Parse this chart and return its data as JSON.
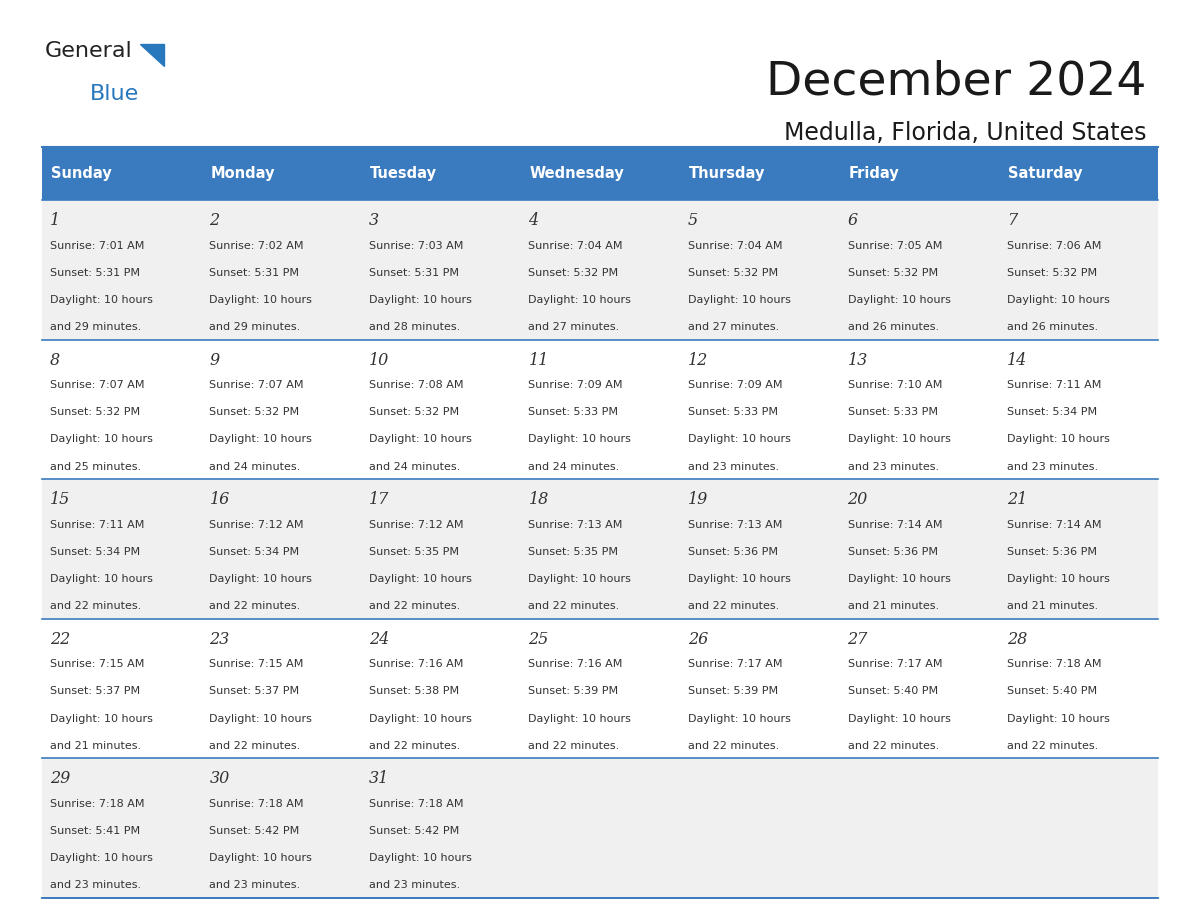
{
  "title": "December 2024",
  "subtitle": "Medulla, Florida, United States",
  "header_color": "#3a7abf",
  "header_text_color": "#ffffff",
  "bg_color": "#ffffff",
  "cell_bg_even": "#f0f0f0",
  "cell_bg_odd": "#ffffff",
  "text_color": "#333333",
  "day_headers": [
    "Sunday",
    "Monday",
    "Tuesday",
    "Wednesday",
    "Thursday",
    "Friday",
    "Saturday"
  ],
  "days": [
    {
      "date": 1,
      "dow": 0,
      "sunrise": "7:01 AM",
      "sunset": "5:31 PM",
      "daylight": "10 hours and 29 minutes."
    },
    {
      "date": 2,
      "dow": 1,
      "sunrise": "7:02 AM",
      "sunset": "5:31 PM",
      "daylight": "10 hours and 29 minutes."
    },
    {
      "date": 3,
      "dow": 2,
      "sunrise": "7:03 AM",
      "sunset": "5:31 PM",
      "daylight": "10 hours and 28 minutes."
    },
    {
      "date": 4,
      "dow": 3,
      "sunrise": "7:04 AM",
      "sunset": "5:32 PM",
      "daylight": "10 hours and 27 minutes."
    },
    {
      "date": 5,
      "dow": 4,
      "sunrise": "7:04 AM",
      "sunset": "5:32 PM",
      "daylight": "10 hours and 27 minutes."
    },
    {
      "date": 6,
      "dow": 5,
      "sunrise": "7:05 AM",
      "sunset": "5:32 PM",
      "daylight": "10 hours and 26 minutes."
    },
    {
      "date": 7,
      "dow": 6,
      "sunrise": "7:06 AM",
      "sunset": "5:32 PM",
      "daylight": "10 hours and 26 minutes."
    },
    {
      "date": 8,
      "dow": 0,
      "sunrise": "7:07 AM",
      "sunset": "5:32 PM",
      "daylight": "10 hours and 25 minutes."
    },
    {
      "date": 9,
      "dow": 1,
      "sunrise": "7:07 AM",
      "sunset": "5:32 PM",
      "daylight": "10 hours and 24 minutes."
    },
    {
      "date": 10,
      "dow": 2,
      "sunrise": "7:08 AM",
      "sunset": "5:32 PM",
      "daylight": "10 hours and 24 minutes."
    },
    {
      "date": 11,
      "dow": 3,
      "sunrise": "7:09 AM",
      "sunset": "5:33 PM",
      "daylight": "10 hours and 24 minutes."
    },
    {
      "date": 12,
      "dow": 4,
      "sunrise": "7:09 AM",
      "sunset": "5:33 PM",
      "daylight": "10 hours and 23 minutes."
    },
    {
      "date": 13,
      "dow": 5,
      "sunrise": "7:10 AM",
      "sunset": "5:33 PM",
      "daylight": "10 hours and 23 minutes."
    },
    {
      "date": 14,
      "dow": 6,
      "sunrise": "7:11 AM",
      "sunset": "5:34 PM",
      "daylight": "10 hours and 23 minutes."
    },
    {
      "date": 15,
      "dow": 0,
      "sunrise": "7:11 AM",
      "sunset": "5:34 PM",
      "daylight": "10 hours and 22 minutes."
    },
    {
      "date": 16,
      "dow": 1,
      "sunrise": "7:12 AM",
      "sunset": "5:34 PM",
      "daylight": "10 hours and 22 minutes."
    },
    {
      "date": 17,
      "dow": 2,
      "sunrise": "7:12 AM",
      "sunset": "5:35 PM",
      "daylight": "10 hours and 22 minutes."
    },
    {
      "date": 18,
      "dow": 3,
      "sunrise": "7:13 AM",
      "sunset": "5:35 PM",
      "daylight": "10 hours and 22 minutes."
    },
    {
      "date": 19,
      "dow": 4,
      "sunrise": "7:13 AM",
      "sunset": "5:36 PM",
      "daylight": "10 hours and 22 minutes."
    },
    {
      "date": 20,
      "dow": 5,
      "sunrise": "7:14 AM",
      "sunset": "5:36 PM",
      "daylight": "10 hours and 21 minutes."
    },
    {
      "date": 21,
      "dow": 6,
      "sunrise": "7:14 AM",
      "sunset": "5:36 PM",
      "daylight": "10 hours and 21 minutes."
    },
    {
      "date": 22,
      "dow": 0,
      "sunrise": "7:15 AM",
      "sunset": "5:37 PM",
      "daylight": "10 hours and 21 minutes."
    },
    {
      "date": 23,
      "dow": 1,
      "sunrise": "7:15 AM",
      "sunset": "5:37 PM",
      "daylight": "10 hours and 22 minutes."
    },
    {
      "date": 24,
      "dow": 2,
      "sunrise": "7:16 AM",
      "sunset": "5:38 PM",
      "daylight": "10 hours and 22 minutes."
    },
    {
      "date": 25,
      "dow": 3,
      "sunrise": "7:16 AM",
      "sunset": "5:39 PM",
      "daylight": "10 hours and 22 minutes."
    },
    {
      "date": 26,
      "dow": 4,
      "sunrise": "7:17 AM",
      "sunset": "5:39 PM",
      "daylight": "10 hours and 22 minutes."
    },
    {
      "date": 27,
      "dow": 5,
      "sunrise": "7:17 AM",
      "sunset": "5:40 PM",
      "daylight": "10 hours and 22 minutes."
    },
    {
      "date": 28,
      "dow": 6,
      "sunrise": "7:18 AM",
      "sunset": "5:40 PM",
      "daylight": "10 hours and 22 minutes."
    },
    {
      "date": 29,
      "dow": 0,
      "sunrise": "7:18 AM",
      "sunset": "5:41 PM",
      "daylight": "10 hours and 23 minutes."
    },
    {
      "date": 30,
      "dow": 1,
      "sunrise": "7:18 AM",
      "sunset": "5:42 PM",
      "daylight": "10 hours and 23 minutes."
    },
    {
      "date": 31,
      "dow": 2,
      "sunrise": "7:18 AM",
      "sunset": "5:42 PM",
      "daylight": "10 hours and 23 minutes."
    }
  ]
}
